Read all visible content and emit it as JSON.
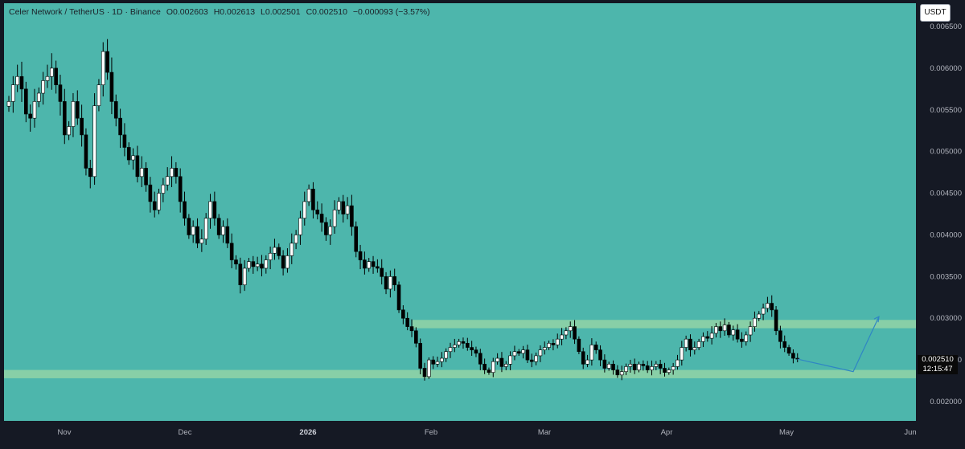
{
  "header": {
    "symbol": "Celer Network / TetherUS · 1D · Binance",
    "open": "O0.002603",
    "high": "H0.002613",
    "low": "L0.002501",
    "close": "C0.002510",
    "change": "−0.000093 (−3.57%)"
  },
  "currency_button": "USDT",
  "price_tag": {
    "price": "0.002510",
    "countdown": "12:15:47"
  },
  "colors": {
    "background": "#4db6ac",
    "zone": "#8fd1a6",
    "candle_up": "#ffffff",
    "candle_down": "#000000",
    "projection": "#2f86c4",
    "axis_bg": "#151924"
  },
  "chart_data": {
    "type": "candlestick",
    "ylim": [
      0.0018,
      0.0066
    ],
    "y_ticks": [
      "0.002000",
      "0.002500",
      "0.003000",
      "0.003500",
      "0.004000",
      "0.004500",
      "0.005000",
      "0.005500",
      "0.006000",
      "0.006500"
    ],
    "x_ticks": [
      {
        "label": "Nov",
        "day": 0
      },
      {
        "label": "Dec",
        "day": 30
      },
      {
        "label": "2026",
        "day": 61,
        "bold": true
      },
      {
        "label": "Feb",
        "day": 92
      },
      {
        "label": "Mar",
        "day": 120
      },
      {
        "label": "Apr",
        "day": 151
      },
      {
        "label": "May",
        "day": 181
      },
      {
        "label": "Jun",
        "day": 212
      }
    ],
    "zones": [
      {
        "name": "resistance",
        "y_low": 0.00288,
        "y_high": 0.00298
      },
      {
        "name": "support",
        "y_low": 0.00228,
        "y_high": 0.00238
      }
    ],
    "projection": [
      {
        "day": 197,
        "price": 0.00236
      },
      {
        "day": 203,
        "price": 0.00302
      }
    ],
    "closes": [
      0.0056,
      0.0058,
      0.0059,
      0.00575,
      0.00545,
      0.0054,
      0.0056,
      0.0057,
      0.00585,
      0.0059,
      0.006,
      0.0058,
      0.0056,
      0.0052,
      0.0053,
      0.0056,
      0.0054,
      0.0052,
      0.0048,
      0.0047,
      0.00555,
      0.0058,
      0.0062,
      0.00595,
      0.0056,
      0.0054,
      0.0052,
      0.00505,
      0.0049,
      0.00495,
      0.0047,
      0.0048,
      0.0046,
      0.0044,
      0.0043,
      0.0045,
      0.0046,
      0.0047,
      0.0048,
      0.0047,
      0.0044,
      0.0042,
      0.004,
      0.0041,
      0.0039,
      0.00395,
      0.0042,
      0.0044,
      0.0042,
      0.004,
      0.0041,
      0.0039,
      0.0037,
      0.00365,
      0.0034,
      0.0036,
      0.00368,
      0.00362,
      0.00365,
      0.0036,
      0.0037,
      0.00378,
      0.00385,
      0.00375,
      0.0036,
      0.00375,
      0.0039,
      0.004,
      0.0042,
      0.0044,
      0.00455,
      0.0043,
      0.00425,
      0.00415,
      0.004,
      0.0041,
      0.0043,
      0.0044,
      0.00425,
      0.00435,
      0.0041,
      0.0038,
      0.0037,
      0.0036,
      0.00368,
      0.00362,
      0.0036,
      0.0035,
      0.00335,
      0.0035,
      0.0034,
      0.0031,
      0.003,
      0.0029,
      0.00285,
      0.0027,
      0.0024,
      0.0023,
      0.0025,
      0.00245,
      0.00248,
      0.00252,
      0.0026,
      0.00265,
      0.00268,
      0.00272,
      0.0027,
      0.00265,
      0.00262,
      0.00258,
      0.00245,
      0.00238,
      0.00235,
      0.00248,
      0.00252,
      0.00242,
      0.00245,
      0.00255,
      0.0026,
      0.00258,
      0.00262,
      0.0025,
      0.00248,
      0.00255,
      0.00262,
      0.00265,
      0.0027,
      0.00268,
      0.00275,
      0.0028,
      0.00285,
      0.0029,
      0.00275,
      0.0026,
      0.00245,
      0.0025,
      0.00268,
      0.00262,
      0.0025,
      0.0024,
      0.00245,
      0.00238,
      0.00232,
      0.00236,
      0.00242,
      0.00245,
      0.00238,
      0.00245,
      0.00243,
      0.00238,
      0.00242,
      0.00245,
      0.0024,
      0.00235,
      0.00238,
      0.00242,
      0.0025,
      0.00265,
      0.00275,
      0.00262,
      0.00265,
      0.00272,
      0.00278,
      0.00276,
      0.00282,
      0.0029,
      0.00285,
      0.00292,
      0.0028,
      0.00286,
      0.00275,
      0.00272,
      0.0028,
      0.0029,
      0.003,
      0.00305,
      0.00312,
      0.00318,
      0.0031,
      0.00285,
      0.00272,
      0.00265,
      0.00258,
      0.00252,
      0.00251
    ]
  }
}
